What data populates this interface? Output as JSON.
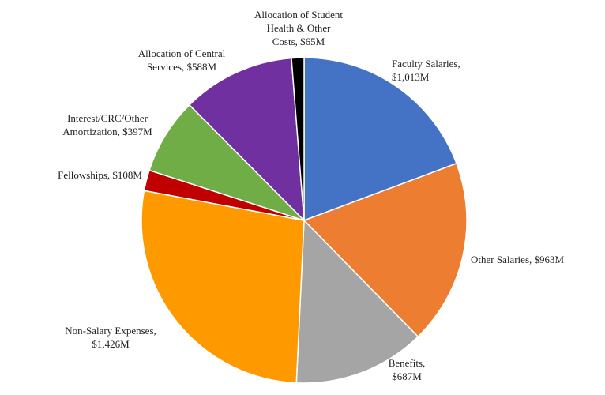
{
  "chart_data": {
    "type": "pie",
    "title": "",
    "unit": "$M",
    "start": "top, clockwise",
    "slices": [
      {
        "label_lines": [
          "Faculty Salaries,",
          "$1,013M"
        ],
        "value": 1013,
        "color": "#4472c4"
      },
      {
        "label_lines": [
          "Other Salaries, $963M"
        ],
        "value": 963,
        "color": "#ed7d31"
      },
      {
        "label_lines": [
          "Benefits,",
          "$687M"
        ],
        "value": 687,
        "color": "#a5a5a5"
      },
      {
        "label_lines": [
          "Non-Salary Expenses,",
          "$1,426M"
        ],
        "value": 1426,
        "color": "#ff9900"
      },
      {
        "label_lines": [
          "Fellowships, $108M"
        ],
        "value": 108,
        "color": "#c00000"
      },
      {
        "label_lines": [
          "Interest/CRC/Other",
          "Amortization, $397M"
        ],
        "value": 397,
        "color": "#70ad47"
      },
      {
        "label_lines": [
          "Allocation of Central",
          "Services, $588M"
        ],
        "value": 588,
        "color": "#7030a0"
      },
      {
        "label_lines": [
          "Allocation of Student",
          "Health & Other",
          "Costs, $65M"
        ],
        "value": 65,
        "color": "#000000"
      }
    ]
  }
}
